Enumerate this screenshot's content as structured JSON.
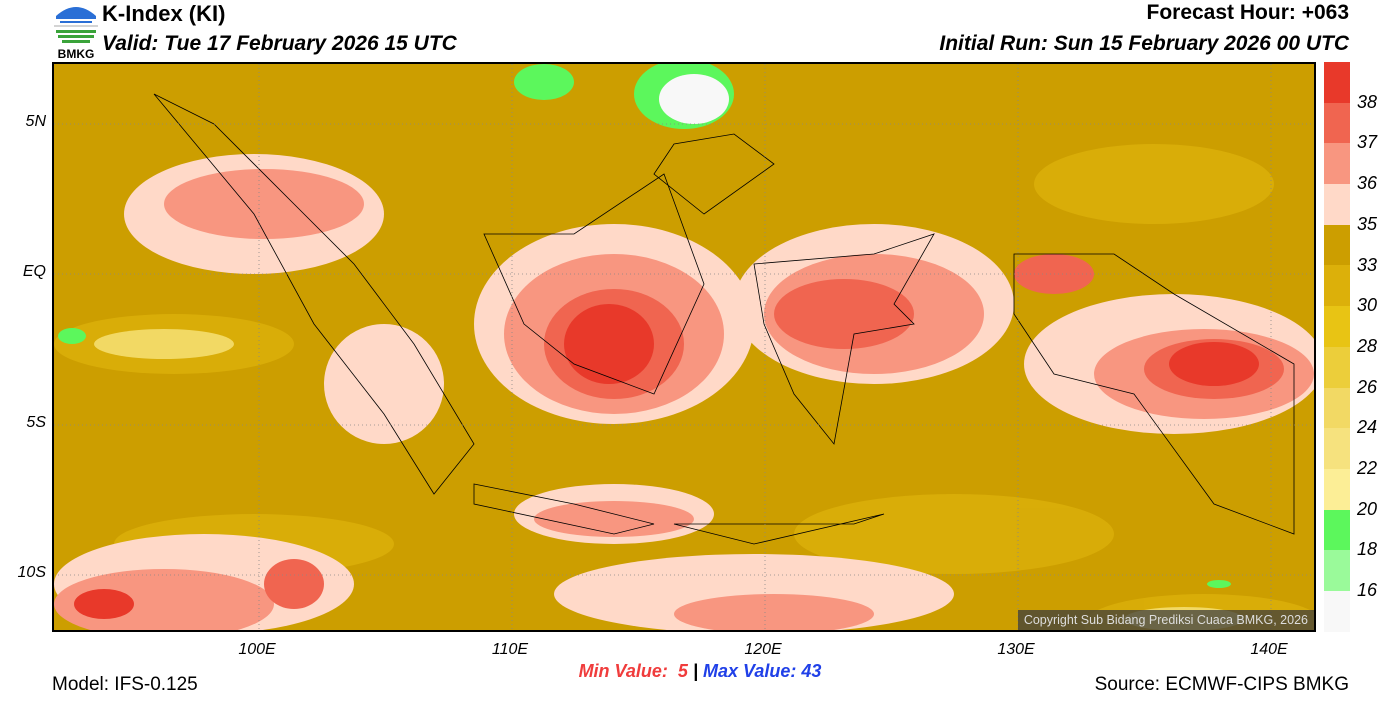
{
  "header": {
    "title": "K-Index (KI)",
    "valid": "Valid: Tue 17 February 2026 15 UTC",
    "forecast_hour": "Forecast Hour: +063",
    "initial_run": "Initial Run: Sun 15 February 2026 00 UTC",
    "logo_text": "BMKG"
  },
  "axes": {
    "lat_labels": [
      "5N",
      "EQ",
      "5S",
      "10S"
    ],
    "lon_labels": [
      "100E",
      "110E",
      "120E",
      "130E",
      "140E"
    ]
  },
  "colorbar": {
    "labels": [
      "38",
      "37",
      "36",
      "35",
      "33",
      "30",
      "28",
      "26",
      "24",
      "22",
      "20",
      "18",
      "16"
    ],
    "colors": [
      "#e8392a",
      "#f06550",
      "#f89680",
      "#ffd9c8",
      "#cc9e00",
      "#dcb00a",
      "#e8c414",
      "#ecce3a",
      "#f2d964",
      "#f6e27e",
      "#fcee96",
      "#5cf75c",
      "#9afa9a",
      "#f8f8f8"
    ]
  },
  "stats": {
    "min_label": "Min Value:",
    "min_value": "5",
    "separator": "|",
    "max_label": "Max Value:",
    "max_value": "43"
  },
  "footer": {
    "model": "Model: IFS-0.125",
    "source": "Source: ECMWF-CIPS BMKG",
    "copyright": "Copyright Sub Bidang Prediksi Cuaca BMKG, 2026"
  }
}
